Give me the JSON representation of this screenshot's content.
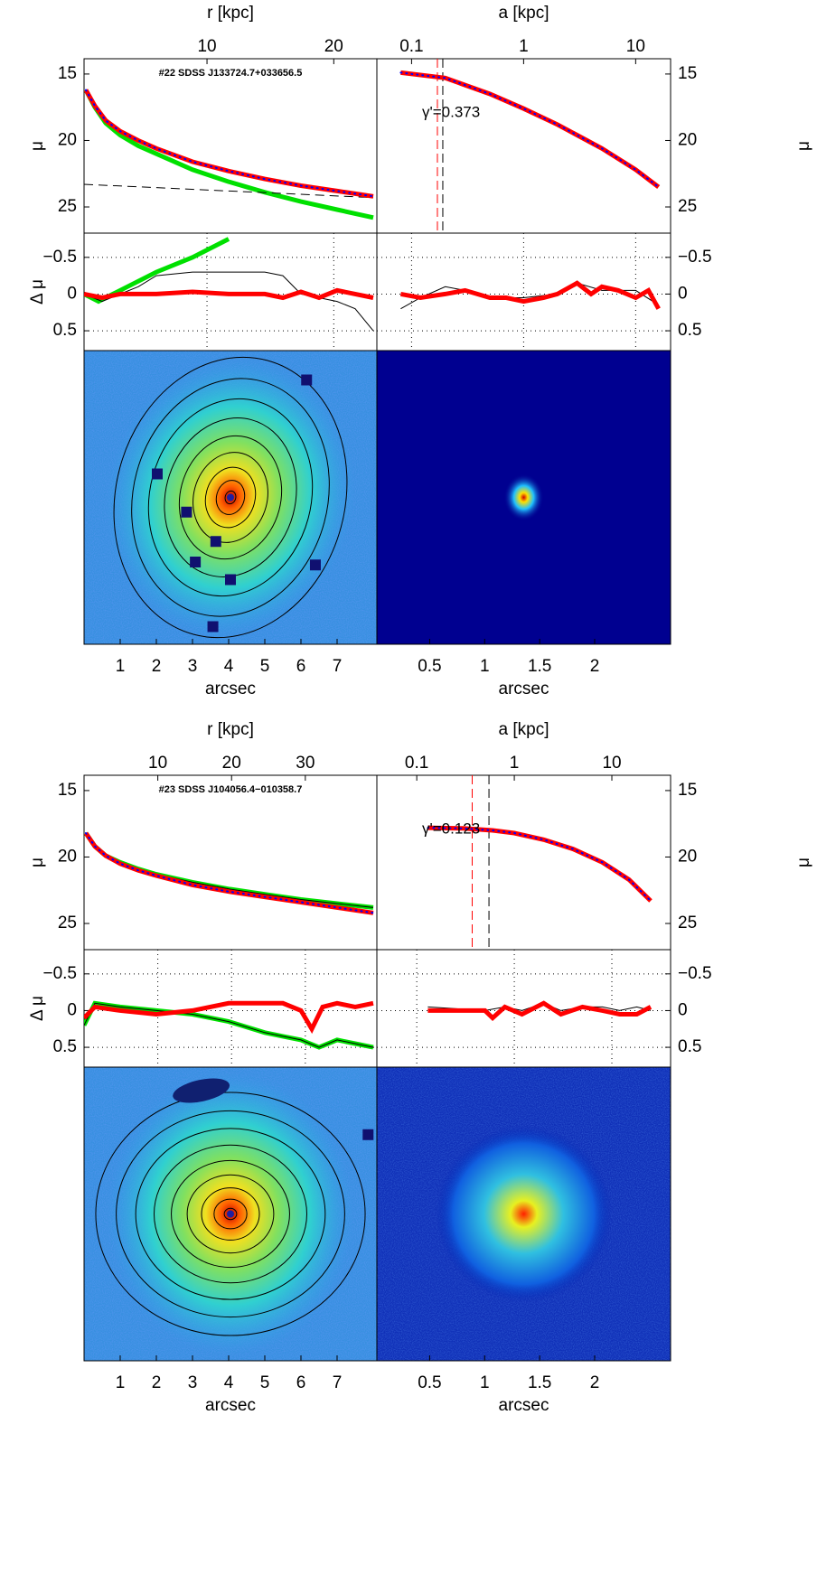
{
  "chart_data": [
    {
      "type": "profile",
      "title": "#22 SDSS J133724.7+033656.5",
      "gamma_label": "γ'=0.373",
      "left": {
        "xlabel": "arcsec",
        "xlim": [
          0,
          8.1
        ],
        "xticks": [
          1,
          2,
          3,
          4,
          5,
          6,
          7
        ],
        "x2label": "r [kpc]",
        "x2lim": [
          0.3,
          23.4
        ],
        "x2ticks": [
          10,
          20
        ],
        "ylabel": "μ",
        "ylim": [
          26.97,
          13.85
        ],
        "yticks": [
          15,
          20,
          25
        ],
        "reslabel": "Δ μ",
        "reslim": [
          0.77,
          -0.83
        ],
        "resticks": [
          {
            "value": -0.5,
            "label": "−0.5"
          },
          0,
          0.5
        ],
        "grid": true,
        "profile": [
          {
            "color": "#00e000",
            "line": "thick",
            "x": [
              0.05,
              0.3,
              0.6,
              1,
              1.5,
              2,
              3,
              4,
              5,
              6,
              7,
              8
            ],
            "values": [
              16.2,
              17.5,
              18.7,
              19.6,
              20.4,
              21.0,
              22.2,
              23.1,
              23.9,
              24.6,
              25.2,
              25.8
            ]
          },
          {
            "color": "#000000",
            "line": "dashed",
            "x": [
              0,
              8
            ],
            "values": [
              23.3,
              24.3
            ]
          },
          {
            "color": "#000000",
            "line": "thin",
            "x": [
              0.05,
              0.3,
              0.6,
              1,
              1.5,
              2,
              3,
              4,
              5,
              6,
              7,
              8
            ],
            "values": [
              16.2,
              17.4,
              18.4,
              19.2,
              19.9,
              20.5,
              21.5,
              22.2,
              22.8,
              23.3,
              23.7,
              24.1
            ]
          },
          {
            "color": "#ff0000",
            "line": "thick",
            "x": [
              0.05,
              0.3,
              0.6,
              1,
              1.5,
              2,
              3,
              4,
              5,
              6,
              7,
              8
            ],
            "values": [
              16.2,
              17.4,
              18.5,
              19.3,
              20.0,
              20.6,
              21.6,
              22.3,
              22.9,
              23.4,
              23.8,
              24.2
            ]
          },
          {
            "color": "#0000ff",
            "line": "dots",
            "x": [
              0.05,
              0.3,
              0.6,
              1,
              1.5,
              2,
              3,
              4,
              5,
              6,
              7,
              8
            ],
            "values": [
              16.2,
              17.4,
              18.5,
              19.3,
              20.0,
              20.6,
              21.6,
              22.3,
              22.9,
              23.4,
              23.8,
              24.2
            ]
          }
        ],
        "residual": [
          {
            "color": "#00e000",
            "line": "thick",
            "x": [
              0,
              0.4,
              0.8,
              1.2,
              2,
              3,
              4
            ],
            "values": [
              0,
              0.1,
              0,
              -0.1,
              -0.3,
              -0.5,
              -0.75
            ]
          },
          {
            "color": "#000000",
            "line": "thin",
            "x": [
              0,
              0.5,
              1,
              1.5,
              2,
              3,
              4,
              5,
              5.5,
              6,
              7,
              7.5,
              8
            ],
            "values": [
              0,
              0.1,
              0,
              -0.1,
              -0.25,
              -0.3,
              -0.3,
              -0.3,
              -0.25,
              0,
              0.1,
              0.2,
              0.5
            ]
          },
          {
            "color": "#ff0000",
            "line": "thick",
            "x": [
              0,
              0.5,
              1,
              2,
              3,
              4,
              5,
              5.5,
              6,
              6.5,
              7,
              7.5,
              8
            ],
            "values": [
              0,
              0.05,
              0,
              0,
              -0.03,
              0,
              0,
              0.05,
              -0.03,
              0.05,
              -0.05,
              0,
              0.05
            ]
          }
        ]
      },
      "right": {
        "xlabel": "arcsec",
        "xlim": [
          0.02,
          2.69
        ],
        "xticks": [
          0.5,
          1,
          1.5,
          2
        ],
        "x2label": "a [kpc]",
        "x2lim": [
          0.049,
          20.5
        ],
        "x2ticks": [
          0.1,
          1,
          10
        ],
        "x2log": true,
        "ylabel": "μ",
        "ylim": [
          26.97,
          13.85
        ],
        "yticks": [
          15,
          20,
          25
        ],
        "reslim": [
          0.77,
          -0.83
        ],
        "resticks": [
          {
            "value": -0.5,
            "label": "−0.5"
          },
          0,
          0.5
        ],
        "grid": true,
        "vlines": [
          {
            "x": 0.17,
            "color": "#ff0000"
          },
          {
            "x": 0.19,
            "color": "#000000"
          }
        ],
        "profile": [
          {
            "color": "#ff0000",
            "line": "thick",
            "x": [
              0.08,
              0.2,
              0.5,
              1,
              2,
              5,
              10,
              16
            ],
            "values": [
              14.9,
              15.3,
              16.5,
              17.6,
              18.8,
              20.6,
              22.2,
              23.5
            ]
          },
          {
            "color": "#0000ff",
            "line": "dots",
            "x": [
              0.08,
              0.2,
              0.5,
              1,
              2,
              5,
              10,
              16
            ],
            "values": [
              14.9,
              15.3,
              16.5,
              17.6,
              18.8,
              20.6,
              22.2,
              23.5
            ]
          }
        ],
        "residual": [
          {
            "color": "#000000",
            "line": "thin",
            "x": [
              0.08,
              0.12,
              0.2,
              0.3,
              0.5,
              1,
              2,
              3,
              5,
              10,
              16
            ],
            "values": [
              0.2,
              0.05,
              -0.1,
              -0.05,
              0.05,
              0.05,
              0,
              -0.15,
              -0.05,
              -0.05,
              0.15
            ]
          },
          {
            "color": "#ff0000",
            "line": "thick",
            "x": [
              0.08,
              0.12,
              0.2,
              0.3,
              0.5,
              0.7,
              1,
              1.5,
              2,
              3,
              4,
              5,
              7,
              10,
              13,
              16
            ],
            "values": [
              0,
              0.05,
              0,
              -0.05,
              0.05,
              0.05,
              0.1,
              0.05,
              0,
              -0.15,
              0,
              -0.1,
              -0.05,
              0.05,
              -0.05,
              0.2
            ]
          }
        ]
      }
    },
    {
      "type": "profile",
      "title": "#23 SDSS J104056.4−010358.7",
      "gamma_label": "γ'=0.123",
      "left": {
        "xlabel": "arcsec",
        "xlim": [
          0,
          8.1
        ],
        "xticks": [
          1,
          2,
          3,
          4,
          5,
          6,
          7
        ],
        "x2label": "r [kpc]",
        "x2lim": [
          0,
          39.7
        ],
        "x2ticks": [
          10,
          20,
          30
        ],
        "ylabel": "μ",
        "ylim": [
          26.97,
          13.85
        ],
        "yticks": [
          15,
          20,
          25
        ],
        "reslabel": "Δ μ",
        "reslim": [
          0.77,
          -0.83
        ],
        "resticks": [
          {
            "value": -0.5,
            "label": "−0.5"
          },
          0,
          0.5
        ],
        "grid": true,
        "profile": [
          {
            "color": "#00e000",
            "line": "thick",
            "x": [
              0.05,
              0.3,
              0.6,
              1,
              1.5,
              2,
              3,
              4,
              5,
              6,
              7,
              8
            ],
            "values": [
              18.2,
              19.2,
              19.9,
              20.4,
              20.9,
              21.3,
              21.9,
              22.4,
              22.8,
              23.2,
              23.5,
              23.8
            ]
          },
          {
            "color": "#000000",
            "line": "thin",
            "x": [
              0.05,
              0.3,
              0.6,
              1,
              1.5,
              2,
              3,
              4,
              5,
              6,
              7,
              8
            ],
            "values": [
              18.2,
              19.2,
              19.9,
              20.4,
              20.9,
              21.3,
              21.9,
              22.4,
              22.8,
              23.2,
              23.5,
              23.8
            ]
          },
          {
            "color": "#ff0000",
            "line": "thick",
            "x": [
              0.05,
              0.3,
              0.6,
              1,
              1.5,
              2,
              3,
              4,
              5,
              6,
              7,
              8
            ],
            "values": [
              18.2,
              19.2,
              19.9,
              20.5,
              21.0,
              21.4,
              22.1,
              22.6,
              23.0,
              23.4,
              23.8,
              24.2
            ]
          },
          {
            "color": "#0000ff",
            "line": "dots",
            "x": [
              0.05,
              0.3,
              0.6,
              1,
              1.5,
              2,
              3,
              4,
              5,
              6,
              7,
              8
            ],
            "values": [
              18.2,
              19.2,
              19.9,
              20.5,
              21.0,
              21.4,
              22.1,
              22.6,
              23.0,
              23.4,
              23.8,
              24.2
            ]
          }
        ],
        "residual": [
          {
            "color": "#00e000",
            "line": "thick",
            "x": [
              0,
              0.3,
              1,
              2,
              3,
              4,
              5,
              5.5,
              6,
              6.5,
              7,
              7.5,
              8
            ],
            "values": [
              0.2,
              -0.1,
              -0.05,
              0,
              0.05,
              0.15,
              0.3,
              0.35,
              0.4,
              0.5,
              0.4,
              0.45,
              0.5
            ]
          },
          {
            "color": "#000000",
            "line": "thin",
            "x": [
              0,
              0.3,
              1,
              2,
              3,
              4,
              5,
              5.5,
              6,
              6.5,
              7,
              7.5,
              8
            ],
            "values": [
              0.2,
              -0.1,
              -0.05,
              0,
              0.05,
              0.15,
              0.3,
              0.35,
              0.4,
              0.5,
              0.4,
              0.45,
              0.5
            ]
          },
          {
            "color": "#ff0000",
            "line": "thick",
            "x": [
              0,
              0.3,
              1,
              2,
              3,
              4,
              5,
              5.5,
              6,
              6.3,
              6.6,
              7,
              7.5,
              8
            ],
            "values": [
              0.1,
              -0.05,
              0,
              0.05,
              0,
              -0.1,
              -0.1,
              -0.1,
              0,
              0.25,
              -0.05,
              -0.1,
              -0.05,
              -0.1
            ]
          }
        ]
      },
      "right": {
        "xlabel": "arcsec",
        "xlim": [
          0.02,
          2.69
        ],
        "xticks": [
          0.5,
          1,
          1.5,
          2
        ],
        "x2label": "a [kpc]",
        "x2lim": [
          0.039,
          40
        ],
        "x2ticks": [
          0.1,
          1,
          10
        ],
        "x2log": true,
        "ylabel": "μ",
        "ylim": [
          26.97,
          13.85
        ],
        "yticks": [
          15,
          20,
          25
        ],
        "reslim": [
          0.77,
          -0.83
        ],
        "resticks": [
          {
            "value": -0.5,
            "label": "−0.5"
          },
          0,
          0.5
        ],
        "grid": true,
        "vlines": [
          {
            "x": 0.37,
            "color": "#ff0000"
          },
          {
            "x": 0.55,
            "color": "#000000"
          }
        ],
        "profile": [
          {
            "color": "#ff0000",
            "line": "thick",
            "x": [
              0.13,
              0.3,
              0.6,
              1,
              2,
              4,
              8,
              15,
              25
            ],
            "values": [
              17.8,
              17.85,
              18.0,
              18.2,
              18.7,
              19.4,
              20.4,
              21.7,
              23.3
            ]
          },
          {
            "color": "#0000ff",
            "line": "dots",
            "x": [
              0.13,
              0.3,
              0.6,
              1,
              2,
              4,
              8,
              15,
              25
            ],
            "values": [
              17.8,
              17.85,
              18.0,
              18.2,
              18.7,
              19.4,
              20.4,
              21.7,
              23.3
            ]
          }
        ],
        "residual": [
          {
            "color": "#000000",
            "line": "thin",
            "x": [
              0.13,
              0.3,
              0.5,
              0.8,
              1.2,
              2,
              3,
              5,
              8,
              12,
              18,
              25
            ],
            "values": [
              -0.05,
              -0.02,
              0,
              -0.05,
              0,
              -0.1,
              0,
              -0.05,
              -0.05,
              0,
              -0.05,
              0
            ]
          },
          {
            "color": "#ff0000",
            "line": "thick",
            "x": [
              0.13,
              0.3,
              0.5,
              0.6,
              0.8,
              1.2,
              2,
              3,
              5,
              8,
              12,
              18,
              25
            ],
            "values": [
              0,
              0,
              0,
              0.1,
              -0.05,
              0.05,
              -0.1,
              0.05,
              -0.05,
              0,
              0.05,
              0.05,
              -0.05
            ]
          }
        ]
      }
    }
  ]
}
